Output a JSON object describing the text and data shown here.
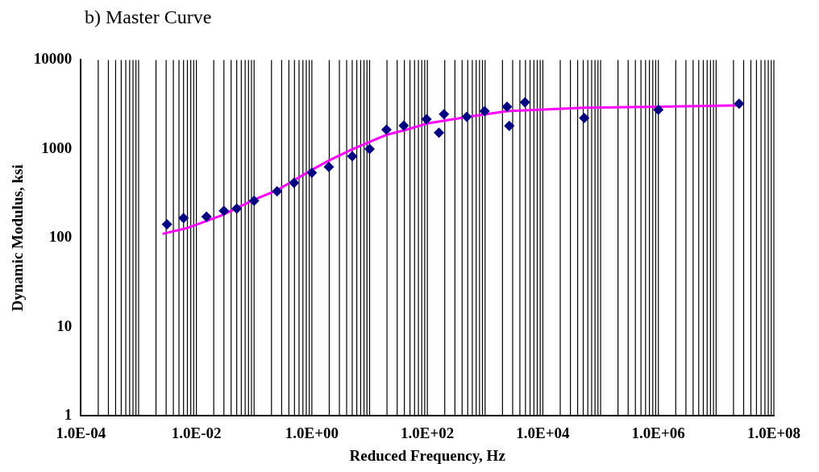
{
  "chart_data": {
    "type": "scatter",
    "title": "b) Master Curve",
    "xlabel": "Reduced Frequency, Hz",
    "ylabel": "Dynamic Modulus, ksi",
    "log": "xy",
    "grid": "x",
    "legend": false,
    "xlim": [
      0.0001,
      100000000
    ],
    "xticks": [
      {
        "value": 0.0001,
        "label": "1.0E-04"
      },
      {
        "value": 0.01,
        "label": "1.0E-02"
      },
      {
        "value": 1,
        "label": "1.0E+00"
      },
      {
        "value": 100,
        "label": "1.0E+02"
      },
      {
        "value": 10000,
        "label": "1.0E+04"
      },
      {
        "value": 1000000,
        "label": "1.0E+06"
      },
      {
        "value": 100000000,
        "label": "1.0E+08"
      }
    ],
    "ylim": [
      1,
      10000
    ],
    "yticks": [
      1,
      10,
      100,
      1000,
      10000
    ],
    "series": [
      {
        "type": "scatter",
        "marker": "diamond",
        "color": "#000080",
        "x": [
          0.0031,
          0.006,
          0.015,
          0.03,
          0.05,
          0.1,
          0.25,
          0.49,
          1.0,
          1.97,
          5.0,
          10,
          19.6,
          39,
          97,
          159,
          194,
          482,
          980,
          2400,
          2620,
          4900,
          52000,
          1000000,
          25000000
        ],
        "values": [
          142,
          167,
          173,
          202,
          214,
          261,
          335,
          417,
          541,
          628,
          826,
          1000,
          1648,
          1830,
          2163,
          1525,
          2458,
          2296,
          2656,
          2974,
          1816,
          3336,
          2229,
          2755,
          3230
        ]
      },
      {
        "type": "line",
        "marker": "none",
        "color": "#ff00ff",
        "x": [
          0.0026,
          0.0066,
          0.015,
          0.028,
          0.1,
          0.25,
          0.5,
          1,
          2,
          5,
          10,
          20,
          40,
          100,
          482,
          2400,
          52000,
          1000000,
          28000000
        ],
        "values": [
          111,
          128,
          155,
          180,
          269,
          343,
          447,
          582,
          743,
          990,
          1198,
          1446,
          1622,
          1932,
          2280,
          2656,
          2910,
          2974,
          3090
        ]
      }
    ]
  }
}
